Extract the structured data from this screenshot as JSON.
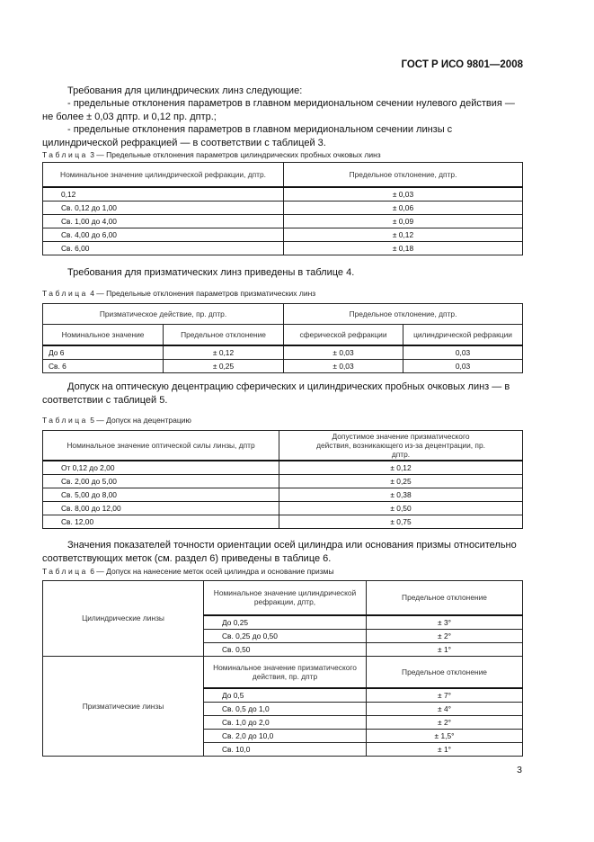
{
  "header": "ГОСТ Р ИСО 9801—2008",
  "para1": "Требования для цилиндрических линз следующие:",
  "para2": "- предельные отклонения параметров в главном меридиональном сечении нулевого действия — не более ± 0,03 дптр. и 0,12 пр. дптр.;",
  "para3": "- предельные отклонения параметров в главном меридиональном сечении линзы с цилиндрической рефракцией — в соответствии с таблицей 3.",
  "table3": {
    "label": "Таблица",
    "title": "3 — Предельные отклонения параметров цилиндрических пробных очковых линз",
    "headers": [
      "Номинальное значение цилиндрической рефракции, дптр.",
      "Предельное отклонение, дптр."
    ],
    "rows": [
      [
        "0,12",
        "± 0,03"
      ],
      [
        "Св. 0,12 до 1,00",
        "± 0,06"
      ],
      [
        "Св. 1,00 до 4,00",
        "± 0,09"
      ],
      [
        "Св. 4,00 до 6,00",
        "± 0,12"
      ],
      [
        "Св. 6,00",
        "± 0,18"
      ]
    ]
  },
  "para4": "Требования для призматических линз приведены в таблице 4.",
  "table4": {
    "label": "Таблица",
    "title": "4 — Предельные отклонения параметров призматических линз",
    "group_headers": [
      "Призматическое действие, пр. дптр.",
      "Предельное отклонение, дптр."
    ],
    "headers": [
      "Номинальное значение",
      "Предельное отклонение",
      "сферической рефракции",
      "цилиндрической рефракции"
    ],
    "rows": [
      [
        "До 6",
        "± 0,12",
        "± 0,03",
        "0,03"
      ],
      [
        "Св. 6",
        "± 0,25",
        "± 0,03",
        "0,03"
      ]
    ]
  },
  "para5": "Допуск на оптическую децентрацию сферических и цилиндрических пробных очковых линз — в соответствии с таблицей 5.",
  "table5": {
    "label": "Таблица",
    "title": "5 — Допуск на децентрацию",
    "headers": [
      "Номинальное значение оптической силы линзы, дптр",
      "Допустимое значение призматического действия, возникающего из-за децентрации, пр. дптр."
    ],
    "rows": [
      [
        "От 0,12 до 2,00",
        "± 0,12"
      ],
      [
        "Св. 2,00 до 5,00",
        "± 0,25"
      ],
      [
        "Св. 5,00 до 8,00",
        "± 0,38"
      ],
      [
        "Св. 8,00 до 12,00",
        "± 0,50"
      ],
      [
        "Св. 12,00",
        "± 0,75"
      ]
    ]
  },
  "para6": "Значения показателей точности ориентации осей цилиндра или основания призмы относительно соответствующих меток (см. раздел 6) приведены в таблице 6.",
  "table6": {
    "label": "Таблица",
    "title": "6 — Допуск на нанесение меток осей цилиндра и основание призмы",
    "cyl": {
      "name": "Цилиндрические линзы",
      "headers": [
        "Номинальное значение цилиндрической рефракции, дптр,",
        "Предельное отклонение"
      ],
      "rows": [
        [
          "До 0,25",
          "± 3°"
        ],
        [
          "Св. 0,25 до 0,50",
          "± 2°"
        ],
        [
          "Св. 0,50",
          "± 1°"
        ]
      ]
    },
    "prism": {
      "name": "Призматические линзы",
      "headers": [
        "Номинальное значение призматического действия, пр. дптр",
        "Предельное отклонение"
      ],
      "rows": [
        [
          "До 0,5",
          "± 7°"
        ],
        [
          "Св. 0,5 до 1,0",
          "± 4°"
        ],
        [
          "Св. 1,0 до 2,0",
          "± 2°"
        ],
        [
          "Св. 2,0 до 10,0",
          "± 1,5°"
        ],
        [
          "Св. 10,0",
          "± 1°"
        ]
      ]
    }
  },
  "page_number": "3"
}
